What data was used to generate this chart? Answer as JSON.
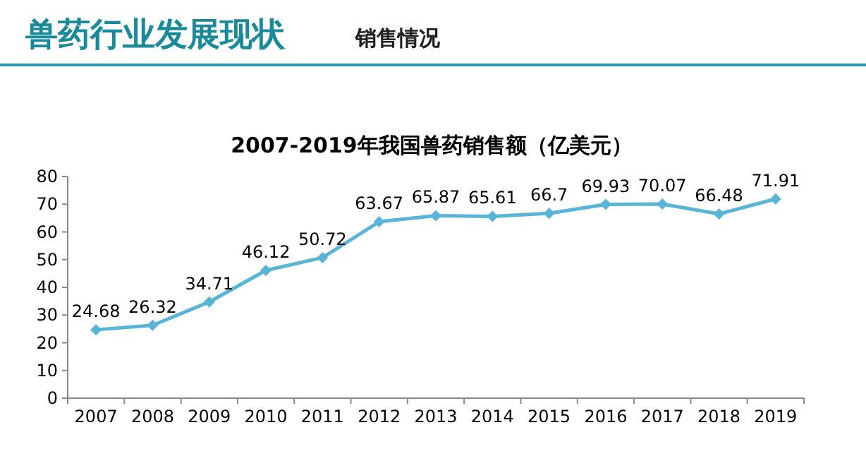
{
  "chart_data": {
    "type": "line",
    "title": "2007-2019年我国兽药销售额（亿美元）",
    "annotations": [
      "兽药行业发展现状",
      "销售情况"
    ],
    "categories": [
      "2007",
      "2008",
      "2009",
      "2010",
      "2011",
      "2012",
      "2013",
      "2014",
      "2015",
      "2016",
      "2017",
      "2018",
      "2019"
    ],
    "series": [
      {
        "color": "#5ab4d6",
        "values": [
          24.68,
          26.32,
          34.71,
          46.12,
          50.72,
          63.67,
          65.87,
          65.61,
          66.7,
          69.93,
          70.07,
          66.48,
          71.91
        ]
      }
    ],
    "ylim": [
      0,
      80
    ],
    "yticks": [
      0,
      10,
      20,
      30,
      40,
      50,
      60,
      70,
      80
    ],
    "data_labels": true,
    "marker": "diamond",
    "line_style": "solid",
    "grid": false
  }
}
